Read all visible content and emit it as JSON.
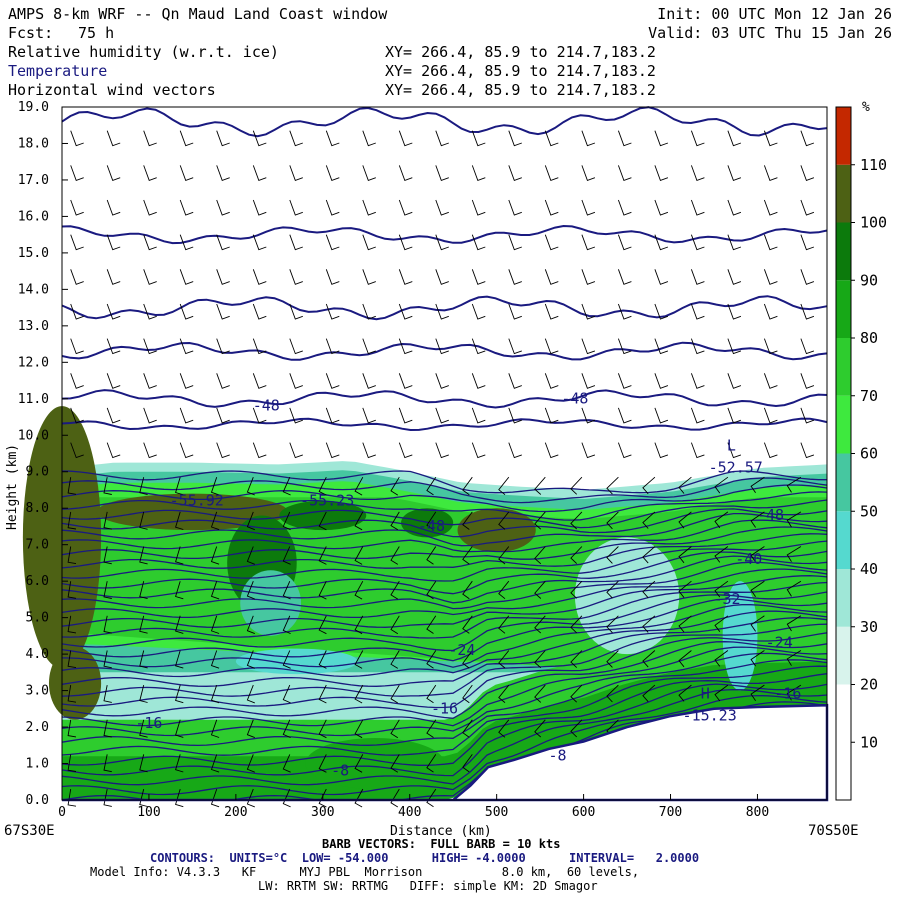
{
  "header": {
    "title": "AMPS 8-km WRF -- Qn Maud Land Coast window",
    "fcst_label": "Fcst:",
    "fcst_value": "75 h",
    "init": "Init: 00 UTC Mon 12 Jan 26",
    "valid": "Valid: 03 UTC Thu 15 Jan 26",
    "fields": [
      {
        "name": "Relative humidity (w.r.t. ice)",
        "xy": "XY= 266.4, 85.9 to 214.7,183.2"
      },
      {
        "name": "Temperature",
        "xy": "XY= 266.4, 85.9 to 214.7,183.2"
      },
      {
        "name": "Horizontal wind vectors",
        "xy": "XY= 266.4, 85.9 to 214.7,183.2"
      }
    ]
  },
  "footer": {
    "barb": "BARB VECTORS:  FULL BARB = 10 kts",
    "contours": "CONTOURS:  UNITS=°C  LOW= -54.000      HIGH= -4.0000      INTERVAL=   2.0000",
    "model1": "Model Info: V4.3.3   KF      MYJ PBL  Morrison           8.0 km,  60 levels,",
    "model2": "LW: RRTM SW: RRTMG   DIFF: simple KM: 2D Smagor"
  },
  "colors": {
    "contour": "#1a1a80",
    "terrain": "#ffffff",
    "rh_scale": [
      "#ffffff",
      "#ffffff",
      "#d8f3ec",
      "#9fe7d7",
      "#55d9cf",
      "#46c7a0",
      "#3ee93e",
      "#2ecc2e",
      "#17a817",
      "#0c7a0c",
      "#4d6114",
      "#c42800"
    ]
  },
  "chart_data": {
    "type": "cross-section",
    "title": "Relative humidity (w.r.t. ice), Temperature, Horizontal wind vectors",
    "xlabel": "Distance (km)",
    "ylabel": "Height (km)",
    "xlim": [
      0,
      880
    ],
    "ylim": [
      0,
      19
    ],
    "x_ticks": [
      0,
      100,
      200,
      300,
      400,
      500,
      600,
      700,
      800
    ],
    "y_ticks": [
      "0.0",
      "1.0",
      "2.0",
      "3.0",
      "4.0",
      "5.0",
      "6.0",
      "7.0",
      "8.0",
      "9.0",
      "10.0",
      "11.0",
      "12.0",
      "13.0",
      "14.0",
      "15.0",
      "16.0",
      "17.0",
      "18.0",
      "19.0"
    ],
    "x_start_label": "67S30E",
    "x_end_label": "70S50E",
    "colorbar": {
      "unit": "%",
      "bounds": [
        0,
        10,
        20,
        30,
        40,
        50,
        60,
        70,
        80,
        90,
        100,
        110,
        120
      ],
      "tick_labels": [
        "10",
        "20",
        "30",
        "40",
        "50",
        "60",
        "70",
        "80",
        "90",
        "100",
        "110"
      ]
    },
    "terrain_profile": [
      [
        0,
        0
      ],
      [
        450,
        0
      ],
      [
        470,
        0.4
      ],
      [
        490,
        0.9
      ],
      [
        520,
        1.1
      ],
      [
        560,
        1.4
      ],
      [
        600,
        1.6
      ],
      [
        650,
        2.0
      ],
      [
        700,
        2.3
      ],
      [
        750,
        2.5
      ],
      [
        800,
        2.55
      ],
      [
        880,
        2.6
      ]
    ],
    "moist_top": [
      [
        0,
        9.1
      ],
      [
        60,
        9.25
      ],
      [
        150,
        9.25
      ],
      [
        250,
        9.2
      ],
      [
        330,
        9.3
      ],
      [
        400,
        9.0
      ],
      [
        460,
        8.7
      ],
      [
        520,
        8.6
      ],
      [
        600,
        8.5
      ],
      [
        700,
        8.7
      ],
      [
        800,
        9.1
      ],
      [
        880,
        9.2
      ]
    ],
    "contours": [
      {
        "base": 18.6,
        "amp": 0.25
      },
      {
        "base": 15.5,
        "amp": 0.15
      },
      {
        "base": 13.5,
        "amp": 0.2
      },
      {
        "base": 12.3,
        "amp": 0.15
      },
      {
        "base": 11.0,
        "amp": 0.15
      },
      {
        "base": 10.3,
        "amp": 0.1
      }
    ],
    "contour_labels": [
      {
        "text": "-48",
        "x": 235,
        "y": 10.8
      },
      {
        "text": "-48",
        "x": 590,
        "y": 11.0
      },
      {
        "text": "-52.57",
        "x": 775,
        "y": 9.1
      },
      {
        "text": "-55.92",
        "x": 155,
        "y": 8.2
      },
      {
        "text": "-55.23",
        "x": 305,
        "y": 8.2
      },
      {
        "text": "-48",
        "x": 425,
        "y": 7.5
      },
      {
        "text": "-48",
        "x": 815,
        "y": 7.8
      },
      {
        "text": "-40",
        "x": 790,
        "y": 6.6
      },
      {
        "text": "-32",
        "x": 765,
        "y": 5.5
      },
      {
        "text": "-24",
        "x": 460,
        "y": 4.1
      },
      {
        "text": "-24",
        "x": 825,
        "y": 4.3
      },
      {
        "text": "-16",
        "x": 100,
        "y": 2.1
      },
      {
        "text": "-16",
        "x": 440,
        "y": 2.5
      },
      {
        "text": "-16",
        "x": 835,
        "y": 2.9
      },
      {
        "text": "-8",
        "x": 320,
        "y": 0.8
      },
      {
        "text": "-8",
        "x": 570,
        "y": 1.2
      },
      {
        "text": "H",
        "x": 740,
        "y": 2.9
      },
      {
        "text": "L",
        "x": 770,
        "y": 9.7
      },
      {
        "text": "-15.23",
        "x": 745,
        "y": 2.3
      }
    ]
  }
}
